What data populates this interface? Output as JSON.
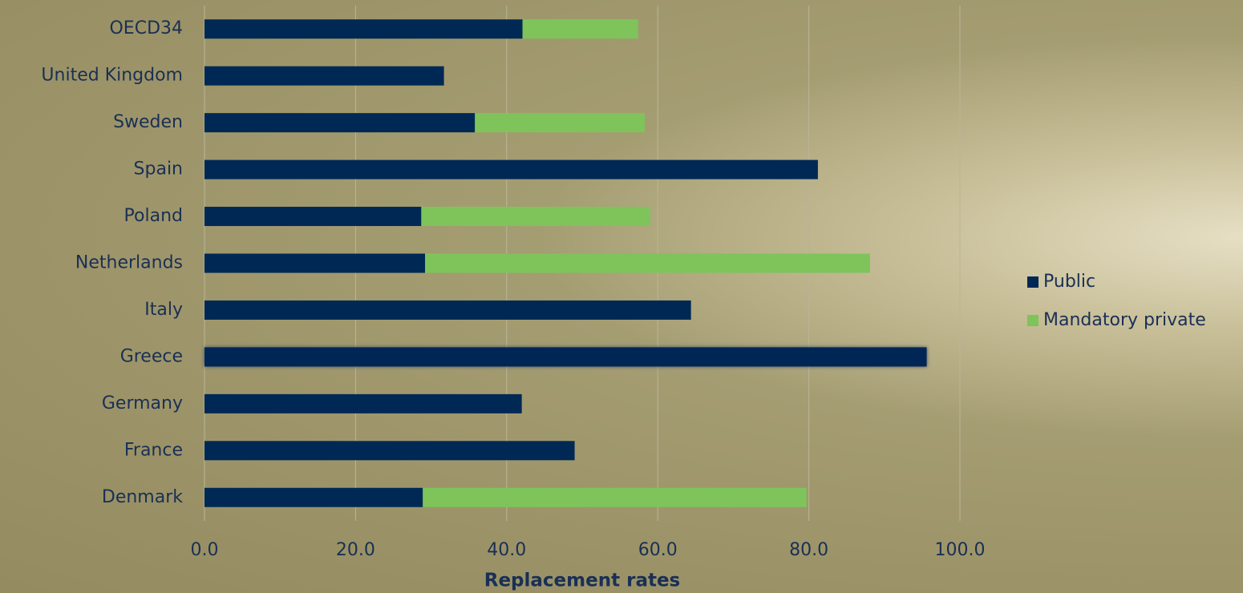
{
  "chart_data": {
    "type": "stacked-barh",
    "x_label": "Replacement rates",
    "categories": [
      "OECD34",
      "United Kingdom",
      "Sweden",
      "Spain",
      "Poland",
      "Netherlands",
      "Italy",
      "Greece",
      "Germany",
      "France",
      "Denmark"
    ],
    "series": [
      {
        "name": "Public",
        "color": "#002855",
        "values": [
          42.1,
          31.7,
          35.8,
          81.2,
          28.7,
          29.2,
          64.4,
          95.6,
          42.0,
          49.0,
          28.9
        ]
      },
      {
        "name": "Mandatory private",
        "color": "#7ec45a",
        "values": [
          15.3,
          null,
          22.5,
          null,
          30.3,
          58.9,
          null,
          null,
          null,
          null,
          50.8
        ]
      }
    ],
    "xlim": [
      0,
      100
    ],
    "xticks": [
      {
        "value": 0,
        "label": "0.0"
      },
      {
        "value": 20,
        "label": "20.0"
      },
      {
        "value": 40,
        "label": "40.0"
      },
      {
        "value": 60,
        "label": "60.0"
      },
      {
        "value": 80,
        "label": "80.0"
      },
      {
        "value": 100,
        "label": "100.0"
      }
    ],
    "grid": true,
    "legend": "right"
  }
}
